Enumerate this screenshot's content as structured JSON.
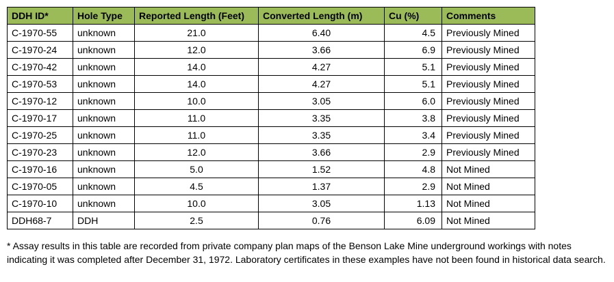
{
  "table": {
    "headers": [
      "DDH ID*",
      "Hole Type",
      "Reported Length (Feet)",
      "Converted Length (m)",
      "Cu (%)",
      "Comments"
    ],
    "rows": [
      [
        "C-1970-55",
        "unknown",
        "21.0",
        "6.40",
        "4.5",
        "Previously Mined"
      ],
      [
        "C-1970-24",
        "unknown",
        "12.0",
        "3.66",
        "6.9",
        "Previously Mined"
      ],
      [
        "C-1970-42",
        "unknown",
        "14.0",
        "4.27",
        "5.1",
        "Previously Mined"
      ],
      [
        "C-1970-53",
        "unknown",
        "14.0",
        "4.27",
        "5.1",
        "Previously Mined"
      ],
      [
        "C-1970-12",
        "unknown",
        "10.0",
        "3.05",
        "6.0",
        "Previously Mined"
      ],
      [
        "C-1970-17",
        "unknown",
        "11.0",
        "3.35",
        "3.8",
        "Previously Mined"
      ],
      [
        "C-1970-25",
        "unknown",
        "11.0",
        "3.35",
        "3.4",
        "Previously Mined"
      ],
      [
        "C-1970-23",
        "unknown",
        "12.0",
        "3.66",
        "2.9",
        "Previously Mined"
      ],
      [
        "C-1970-16",
        "unknown",
        "5.0",
        "1.52",
        "4.8",
        "Not Mined"
      ],
      [
        "C-1970-05",
        "unknown",
        "4.5",
        "1.37",
        "2.9",
        "Not Mined"
      ],
      [
        "C-1970-10",
        "unknown",
        "10.0",
        "3.05",
        "1.13",
        "Not Mined"
      ],
      [
        "DDH68-7",
        "DDH",
        "2.5",
        "0.76",
        "6.09",
        "Not Mined"
      ]
    ]
  },
  "footnote": "* Assay results in this table are recorded from private company plan maps of the Benson Lake Mine underground workings with notes indicating it was completed after December 31, 1972. Laboratory certificates in these examples have not been found in historical data search.",
  "colors": {
    "header_bg": "#9bbb59",
    "border": "#000000"
  }
}
